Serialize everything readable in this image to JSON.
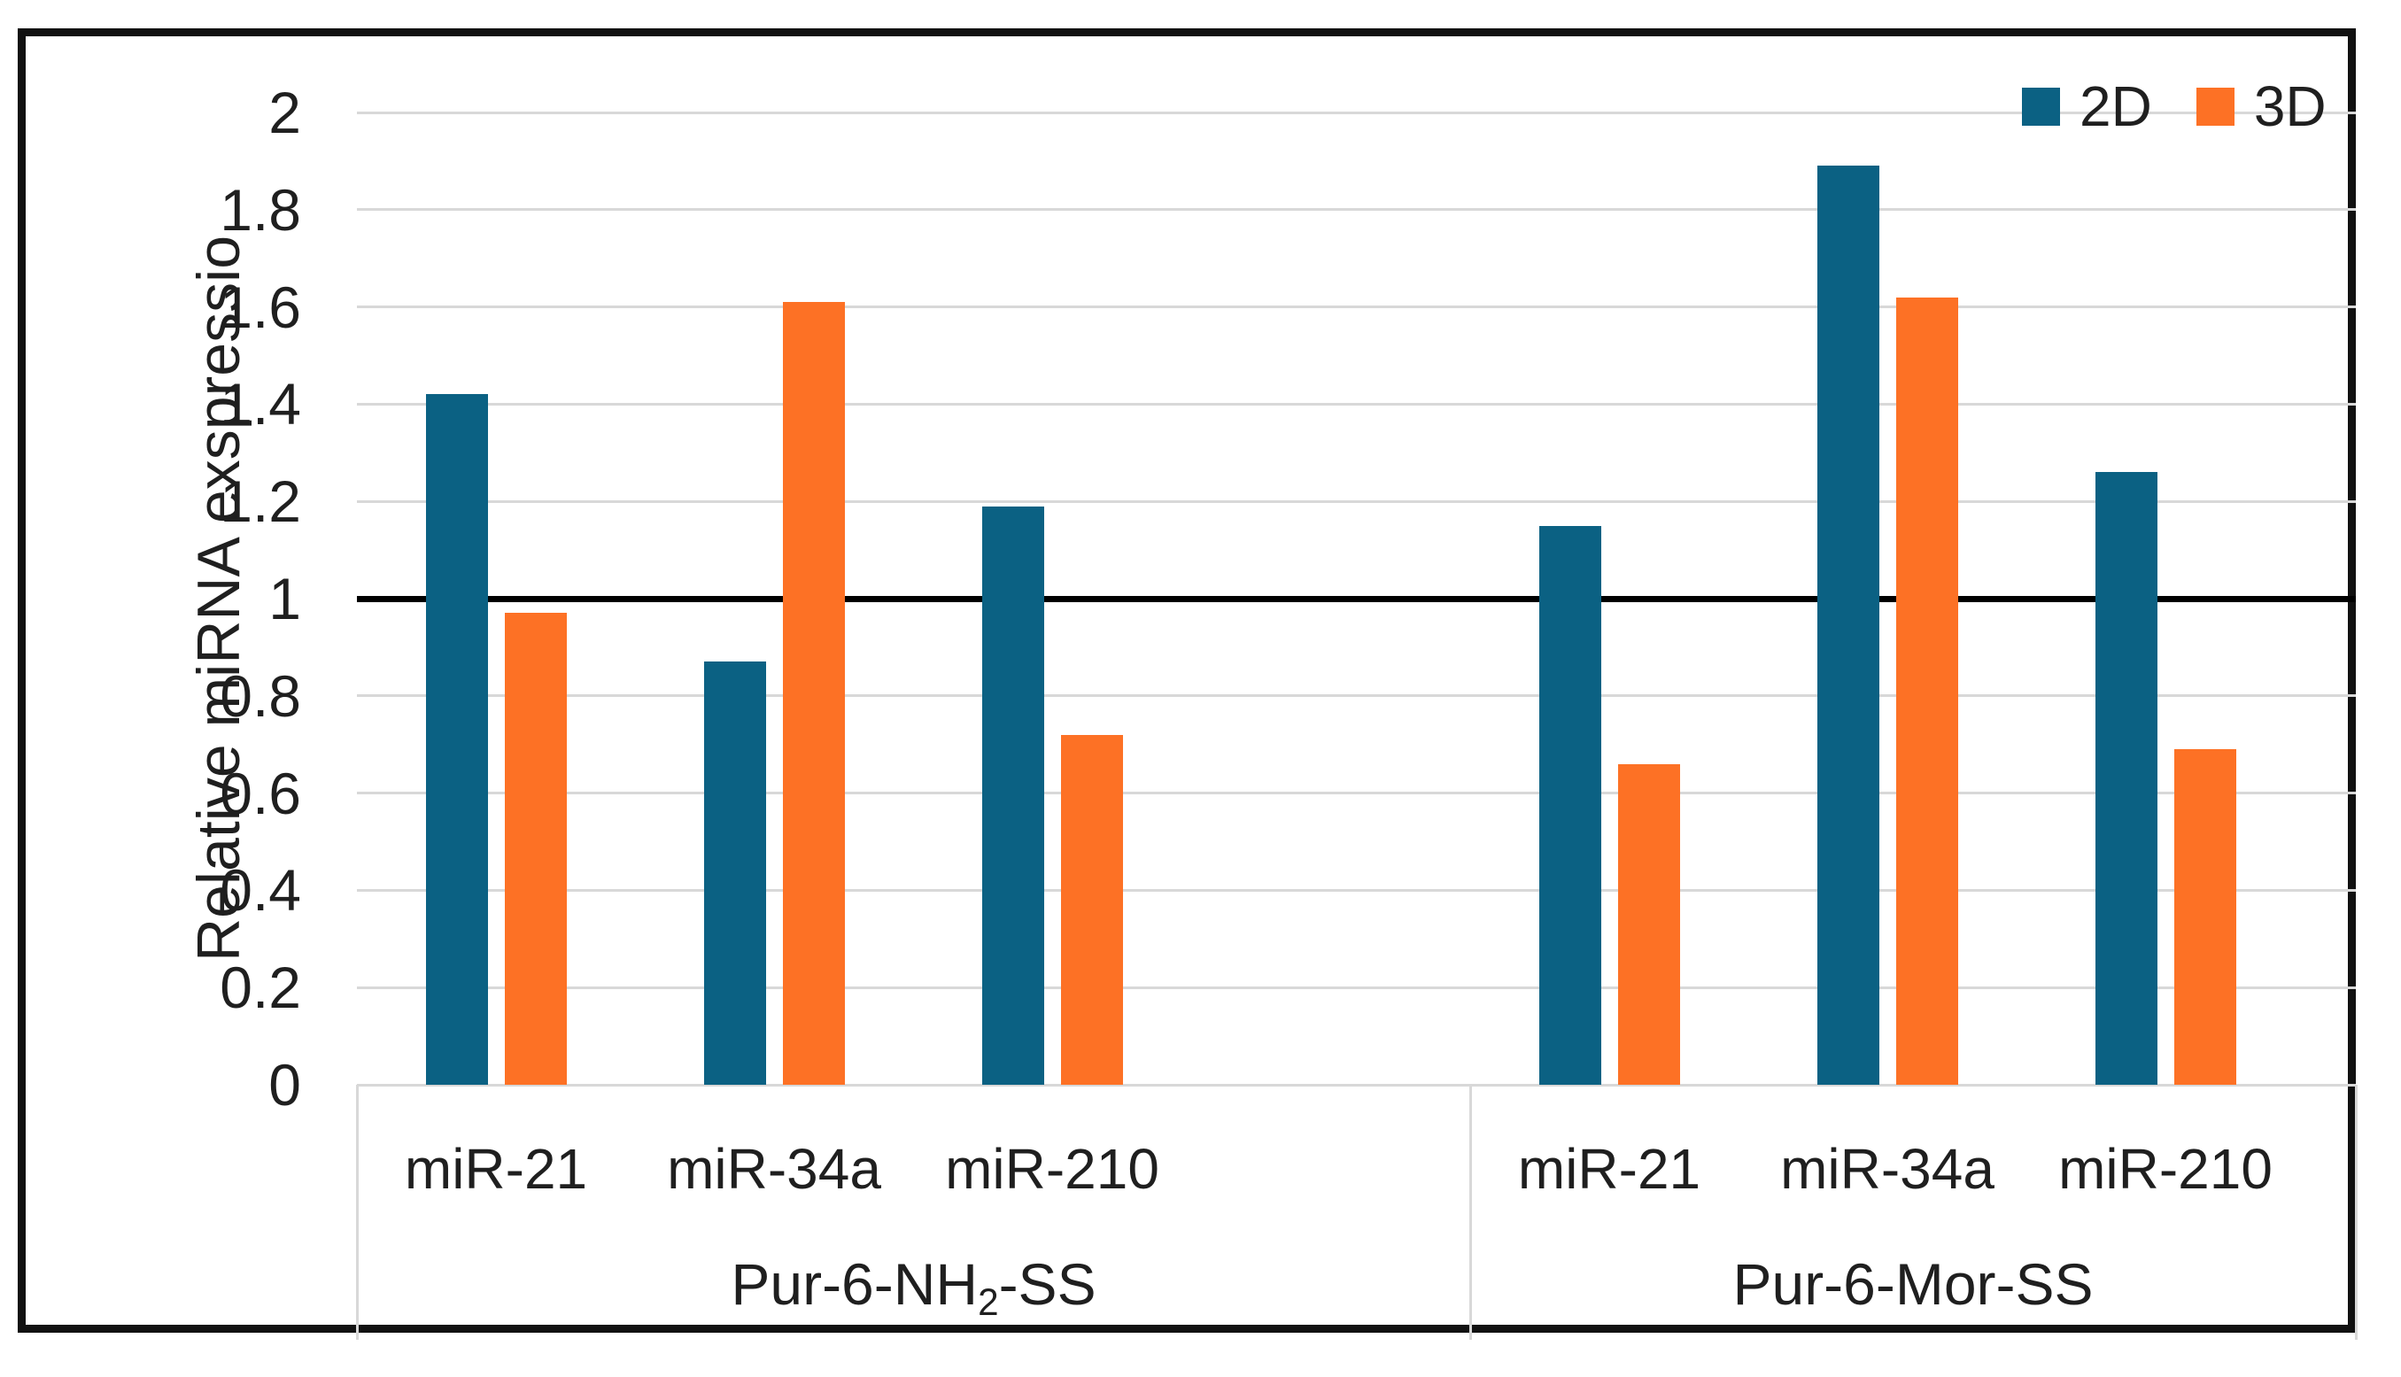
{
  "chart_data": {
    "type": "bar",
    "title": "",
    "ylabel": "Relative miRNA exspressio",
    "xlabel": "",
    "ylim": [
      0,
      2
    ],
    "ytick_step": 0.2,
    "yticks": [
      "0",
      "0.2",
      "0.4",
      "0.6",
      "0.8",
      "1",
      "1.2",
      "1.4",
      "1.6",
      "1.8",
      "2"
    ],
    "reference_line_y": 1,
    "grid": "horizontal",
    "legend_position": "top-right",
    "groups": [
      {
        "label": "Pur-6-NH₂-SS",
        "label_parts": {
          "pre": "Pur-6-NH",
          "sub": "2",
          "post": "-SS"
        },
        "categories": [
          "miR-21",
          "miR-34a",
          "miR-210"
        ]
      },
      {
        "label": "Pur-6-Mor-SS",
        "label_parts": {
          "pre": "Pur-6-Mor-SS",
          "sub": "",
          "post": ""
        },
        "categories": [
          "miR-21",
          "miR-34a",
          "miR-210"
        ]
      }
    ],
    "series": [
      {
        "name": "2D",
        "color": "#0b6183",
        "values": [
          1.42,
          0.87,
          1.19,
          1.15,
          1.89,
          1.26
        ]
      },
      {
        "name": "3D",
        "color": "#fd7125",
        "values": [
          0.97,
          1.61,
          0.72,
          0.66,
          1.62,
          0.69
        ]
      }
    ],
    "colors": {
      "gridline": "#d8d8d8",
      "reference_line": "#000000",
      "frame_border": "#111111",
      "text": "#1f1f1f",
      "background": "#ffffff"
    }
  }
}
